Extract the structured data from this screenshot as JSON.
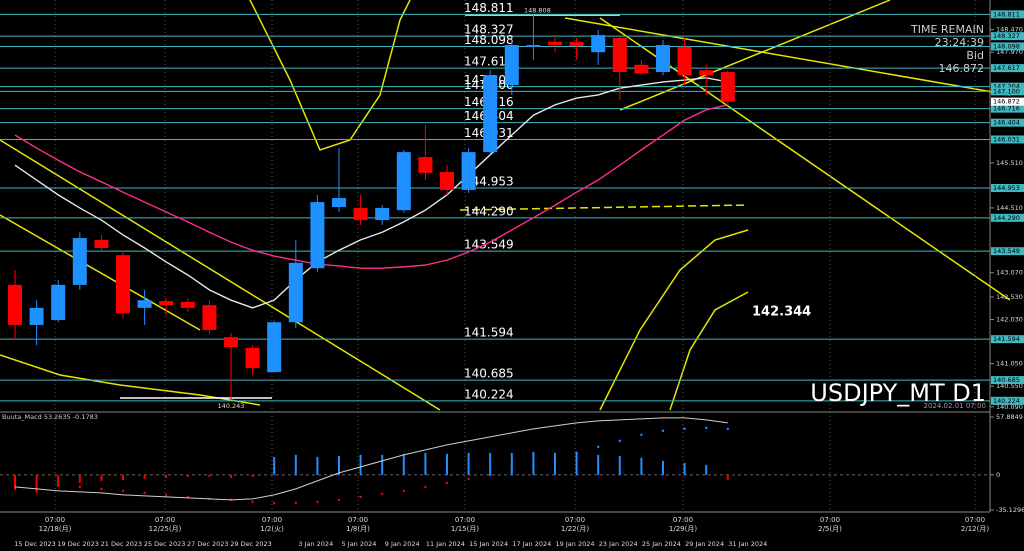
{
  "chart_data": [
    {
      "type": "candlestick",
      "symbol": "USDJPY_MT D1",
      "timestamp": "2024.02.01 07:00",
      "categories": [
        "15 Dec 2023",
        null,
        "19 Dec 2023",
        null,
        "21 Dec 2023",
        null,
        "25 Dec 2023",
        null,
        "27 Dec 2023",
        null,
        "29 Dec 2023",
        null,
        null,
        "3 Jan 2024",
        null,
        "5 Jan 2024",
        null,
        "9 Jan 2024",
        null,
        "11 Jan 2024",
        null,
        "15 Jan 2024",
        null,
        "17 Jan 2024",
        null,
        "19 Jan 2024",
        null,
        "23 Jan 2024",
        null,
        "25 Jan 2024",
        null,
        "29 Jan 2024",
        null,
        "31 Jan 2024"
      ],
      "open": [
        142.8,
        141.91,
        142.02,
        142.8,
        143.8,
        143.46,
        142.29,
        142.44,
        142.42,
        142.35,
        141.64,
        141.4,
        140.86,
        141.97,
        143.17,
        144.53,
        144.51,
        144.24,
        144.46,
        145.64,
        145.31,
        144.91,
        145.75,
        147.24,
        148.09,
        148.2,
        148.2,
        147.97,
        148.29,
        147.69,
        147.53,
        148.09,
        147.57,
        147.53
      ],
      "high": [
        143.13,
        142.46,
        142.91,
        143.97,
        143.91,
        143.57,
        142.69,
        142.51,
        142.51,
        142.46,
        141.73,
        141.46,
        142.0,
        143.8,
        144.8,
        145.84,
        144.8,
        144.57,
        145.8,
        146.35,
        145.46,
        145.84,
        147.57,
        148.24,
        148.808,
        148.35,
        148.29,
        148.46,
        148.35,
        147.8,
        148.24,
        148.29,
        147.69,
        147.57
      ],
      "low": [
        141.58,
        141.46,
        141.97,
        142.69,
        143.53,
        142.06,
        141.91,
        142.13,
        142.2,
        141.69,
        140.243,
        140.8,
        140.86,
        141.84,
        143.09,
        144.42,
        144.13,
        144.13,
        144.4,
        145.13,
        144.8,
        144.84,
        145.69,
        147.02,
        147.8,
        147.97,
        147.8,
        147.69,
        146.91,
        147.46,
        147.46,
        147.24,
        147.02,
        146.8
      ],
      "close": [
        141.91,
        142.29,
        142.8,
        143.84,
        143.62,
        142.17,
        142.46,
        142.35,
        142.29,
        141.8,
        141.42,
        140.95,
        141.97,
        143.29,
        144.64,
        144.73,
        144.24,
        144.51,
        145.75,
        145.29,
        144.91,
        145.75,
        147.46,
        148.13,
        148.13,
        148.13,
        148.11,
        148.35,
        147.53,
        147.5,
        148.13,
        147.46,
        147.46,
        146.872
      ],
      "up_color": "#1e90ff",
      "down_color": "#ff0000",
      "overlays": [
        {
          "color": "#e6e6e6",
          "values": [
            145.46,
            145.13,
            144.8,
            144.51,
            144.24,
            143.91,
            143.62,
            143.31,
            143.02,
            142.69,
            142.46,
            142.29,
            142.46,
            142.91,
            143.31,
            143.57,
            143.8,
            143.97,
            144.2,
            144.46,
            144.8,
            145.24,
            145.69,
            146.13,
            146.57,
            146.8,
            146.95,
            147.02,
            147.17,
            147.24,
            147.31,
            147.35,
            147.4,
            147.31
          ]
        },
        {
          "color": "#ff2d8f",
          "values": [
            146.13,
            145.84,
            145.57,
            145.31,
            145.09,
            144.86,
            144.64,
            144.42,
            144.2,
            143.97,
            143.75,
            143.57,
            143.44,
            143.35,
            143.26,
            143.22,
            143.17,
            143.17,
            143.2,
            143.24,
            143.35,
            143.53,
            143.75,
            144.02,
            144.29,
            144.57,
            144.86,
            145.13,
            145.46,
            145.8,
            146.13,
            146.46,
            146.69,
            146.8
          ]
        }
      ],
      "levels": [
        148.811,
        148.327,
        148.098,
        147.617,
        147.204,
        {
          "value": 147.1,
          "label": "147.100"
        },
        146.716,
        146.404,
        146.031,
        144.953,
        {
          "value": 144.29,
          "label": "144.290"
        },
        143.549,
        141.594,
        140.685,
        140.224
      ],
      "level_color": "#3fb8c0",
      "annotation": 142.344,
      "ylim": [
        140.02,
        149.13
      ],
      "yticks": [
        {
          "value": 148.47,
          "label": "148.470"
        },
        {
          "value": 147.97,
          "label": "147.970"
        },
        {
          "value": 145.51,
          "label": "145.510"
        },
        {
          "value": 144.51,
          "label": "144.510"
        },
        {
          "value": 143.07,
          "label": "143.070"
        },
        {
          "value": 142.53,
          "label": "142.530"
        },
        {
          "value": 142.03,
          "label": "142.030"
        },
        {
          "value": 141.05,
          "label": "141.050"
        },
        {
          "value": 140.55,
          "label": "140.550"
        },
        {
          "value": 140.09,
          "label": "140.090"
        }
      ],
      "session_labels": [
        {
          "time": "07:00",
          "date": "12/18(月)"
        },
        {
          "time": "07:00",
          "date": "12/25(月)"
        },
        {
          "time": "07:00",
          "date": "1/2(火)"
        },
        {
          "time": "07:00",
          "date": "1/8(月)"
        },
        {
          "time": "07:00",
          "date": "1/15(月)"
        },
        {
          "time": "07:00",
          "date": "1/22(月)"
        },
        {
          "time": "07:00",
          "date": "1/29(月)"
        },
        {
          "time": "07:00",
          "date": "2/5(月)"
        },
        {
          "time": "07:00",
          "date": "2/12(月)"
        }
      ],
      "time_remain": {
        "label": "TIME REMAIN",
        "value": "23:24:39",
        "bid_label": "Bid"
      }
    },
    {
      "type": "macd",
      "title": "Buuta_Macd 53.2635 -0.1783",
      "histogram": [
        -15,
        -18,
        -12,
        -8,
        -6,
        -5,
        -4,
        -3,
        -2,
        -2,
        -3,
        -2,
        18,
        20,
        18,
        19,
        20,
        20,
        21,
        22,
        21,
        22,
        22,
        22,
        23,
        22,
        22,
        20,
        19,
        17,
        14,
        12,
        10,
        -5
      ],
      "signal": [
        -5,
        -8,
        -10,
        -12,
        -14,
        -16,
        -18,
        -20,
        -22,
        -24,
        -25,
        -27,
        -28,
        -28,
        -27,
        -25,
        -22,
        -19,
        -16,
        -12,
        -8,
        -4,
        0,
        5,
        10,
        16,
        22,
        28,
        34,
        40,
        44,
        46,
        47,
        46
      ],
      "macd": [
        -12,
        -14,
        -16,
        -17,
        -18,
        -20,
        -21,
        -22,
        -23,
        -24,
        -25,
        -24,
        -20,
        -14,
        -6,
        2,
        8,
        14,
        20,
        25,
        30,
        34,
        38,
        42,
        46,
        49,
        52,
        54,
        55,
        56,
        57,
        57,
        55,
        52
      ],
      "up_color": "#1e90ff",
      "down_color": "#ff0000",
      "line_color": "#cfcfcf",
      "ylim": [
        -35.1296,
        57.8849
      ],
      "yticks": [
        -35.1296,
        0,
        57.8849
      ]
    }
  ]
}
